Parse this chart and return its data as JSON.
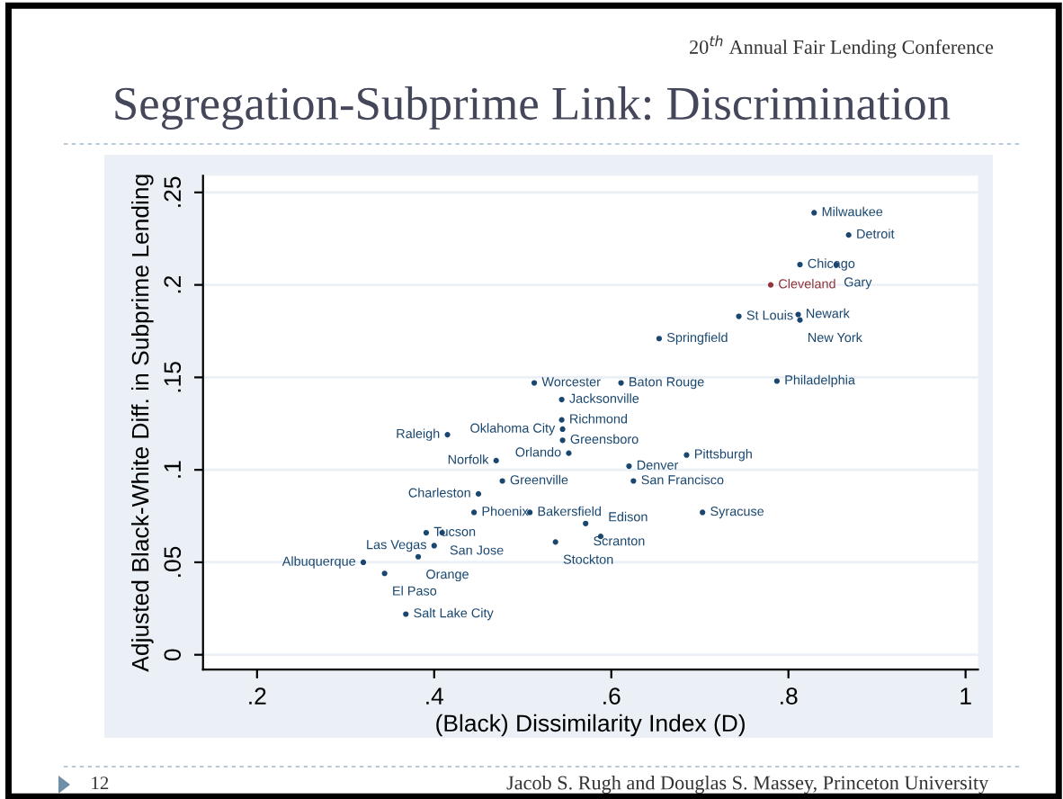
{
  "chart_data": {
    "type": "scatter",
    "title": "Segregation-Subprime Link: Discrimination",
    "xlabel": "(Black) Dissimilarity Index (D)",
    "ylabel": "Adjusted Black-White Diff. in Subprime Lending",
    "marker": "circle",
    "grid": "y",
    "legend": false,
    "xlim": [
      0.139,
      1.014
    ],
    "ylim": [
      -0.008,
      0.259
    ],
    "xticks": [
      {
        "value": 0.2,
        "label": ".2"
      },
      {
        "value": 0.4,
        "label": ".4"
      },
      {
        "value": 0.6,
        "label": ".6"
      },
      {
        "value": 0.8,
        "label": ".8"
      },
      1
    ],
    "yticks": [
      0,
      {
        "value": 0.05,
        "label": ".05"
      },
      {
        "value": 0.1,
        "label": ".1"
      },
      {
        "value": 0.15,
        "label": ".15"
      },
      {
        "value": 0.2,
        "label": ".2"
      },
      {
        "value": 0.25,
        "label": ".25"
      }
    ],
    "series": [
      {
        "x": [
          0.829,
          0.868,
          0.813,
          0.854,
          0.78,
          0.744,
          0.811,
          0.813,
          0.654,
          0.513,
          0.611,
          0.787,
          0.544,
          0.544,
          0.545,
          0.545,
          0.415,
          0.552,
          0.685,
          0.47,
          0.62,
          0.477,
          0.625,
          0.45,
          0.703,
          0.445,
          0.508,
          0.391,
          0.409,
          0.571,
          0.588,
          0.537,
          0.4,
          0.382,
          0.32,
          0.344,
          0.368
        ],
        "values": [
          0.239,
          0.227,
          0.211,
          0.211,
          0.2,
          0.183,
          0.184,
          0.181,
          0.171,
          0.147,
          0.147,
          0.148,
          0.138,
          0.127,
          0.122,
          0.116,
          0.119,
          0.109,
          0.108,
          0.105,
          0.102,
          0.094,
          0.094,
          0.087,
          0.077,
          0.077,
          0.077,
          0.066,
          0.066,
          0.071,
          0.064,
          0.061,
          0.059,
          0.053,
          0.05,
          0.044,
          0.022
        ],
        "colors": [
          "#1a476f",
          "#1a476f",
          "#1a476f",
          "#1a476f",
          "#90353b",
          "#1a476f",
          "#1a476f",
          "#1a476f",
          "#1a476f",
          "#1a476f",
          "#1a476f",
          "#1a476f",
          "#1a476f",
          "#1a476f",
          "#1a476f",
          "#1a476f",
          "#1a476f",
          "#1a476f",
          "#1a476f",
          "#1a476f",
          "#1a476f",
          "#1a476f",
          "#1a476f",
          "#1a476f",
          "#1a476f",
          "#1a476f",
          "#1a476f",
          "#1a476f",
          "#1a476f",
          "#1a476f",
          "#1a476f",
          "#1a476f",
          "#1a476f",
          "#1a476f",
          "#1a476f",
          "#1a476f",
          "#1a476f"
        ]
      }
    ],
    "annotations": [
      {
        "text": "Milwaukee",
        "x": 0.829,
        "y": 0.239
      },
      {
        "text": "Detroit",
        "x": 0.868,
        "y": 0.227
      },
      {
        "text": "Chicago",
        "x": 0.813,
        "y": 0.211
      },
      {
        "text": "Gary",
        "x": 0.854,
        "y": 0.211
      },
      {
        "text": "Cleveland",
        "x": 0.78,
        "y": 0.2
      },
      {
        "text": "St Louis",
        "x": 0.744,
        "y": 0.183
      },
      {
        "text": "Newark",
        "x": 0.811,
        "y": 0.184
      },
      {
        "text": "New York",
        "x": 0.813,
        "y": 0.181
      },
      {
        "text": "Springfield",
        "x": 0.654,
        "y": 0.171
      },
      {
        "text": "Worcester",
        "x": 0.513,
        "y": 0.147
      },
      {
        "text": "Baton Rouge",
        "x": 0.611,
        "y": 0.147
      },
      {
        "text": "Philadelphia",
        "x": 0.787,
        "y": 0.148
      },
      {
        "text": "Jacksonville",
        "x": 0.544,
        "y": 0.138
      },
      {
        "text": "Richmond",
        "x": 0.544,
        "y": 0.127
      },
      {
        "text": "Oklahoma City",
        "x": 0.545,
        "y": 0.122
      },
      {
        "text": "Greensboro",
        "x": 0.545,
        "y": 0.116
      },
      {
        "text": "Raleigh",
        "x": 0.415,
        "y": 0.119
      },
      {
        "text": "Orlando",
        "x": 0.552,
        "y": 0.109
      },
      {
        "text": "Pittsburgh",
        "x": 0.685,
        "y": 0.108
      },
      {
        "text": "Norfolk",
        "x": 0.47,
        "y": 0.105
      },
      {
        "text": "Denver",
        "x": 0.62,
        "y": 0.102
      },
      {
        "text": "Greenville",
        "x": 0.477,
        "y": 0.094
      },
      {
        "text": "San Francisco",
        "x": 0.625,
        "y": 0.094
      },
      {
        "text": "Charleston",
        "x": 0.45,
        "y": 0.087
      },
      {
        "text": "Syracuse",
        "x": 0.703,
        "y": 0.077
      },
      {
        "text": "Phoenix",
        "x": 0.445,
        "y": 0.077
      },
      {
        "text": "Bakersfield",
        "x": 0.508,
        "y": 0.077
      },
      {
        "text": "Tucson",
        "x": 0.391,
        "y": 0.066
      },
      {
        "text": "San Jose",
        "x": 0.409,
        "y": 0.066
      },
      {
        "text": "Scranton",
        "x": 0.571,
        "y": 0.071
      },
      {
        "text": "Edison",
        "x": 0.588,
        "y": 0.064
      },
      {
        "text": "Stockton",
        "x": 0.537,
        "y": 0.061
      },
      {
        "text": "Las Vegas",
        "x": 0.4,
        "y": 0.059
      },
      {
        "text": "Orange",
        "x": 0.382,
        "y": 0.053
      },
      {
        "text": "Albuquerque",
        "x": 0.32,
        "y": 0.05
      },
      {
        "text": "El Paso",
        "x": 0.344,
        "y": 0.044
      },
      {
        "text": "Salt Lake City",
        "x": 0.368,
        "y": 0.022
      },
      "20$^{th}$ Annual Fair Lending Conference",
      "12",
      "Jacob S. Rugh and Douglas S. Massey, Princeton University"
    ]
  }
}
